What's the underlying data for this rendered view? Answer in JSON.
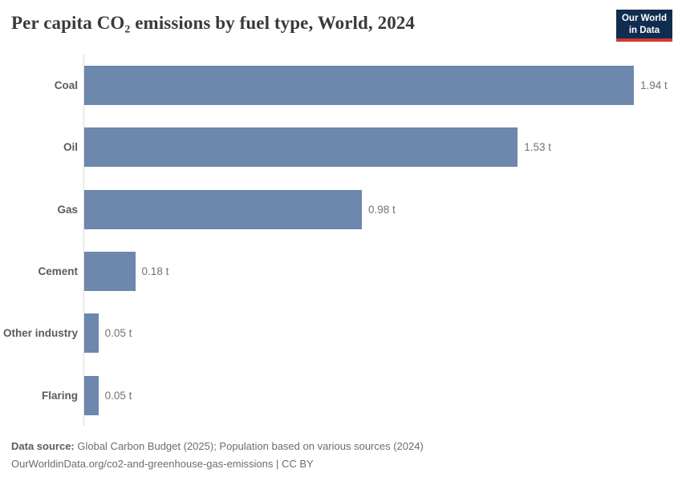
{
  "header": {
    "title": "Per capita CO₂ emissions by fuel type, World, 2024",
    "logo": {
      "line1": "Our World",
      "line2": "in Data"
    }
  },
  "chart_data": {
    "type": "bar",
    "orientation": "horizontal",
    "title": "Per capita CO₂ emissions by fuel type, World, 2024",
    "categories": [
      "Coal",
      "Oil",
      "Gas",
      "Cement",
      "Other industry",
      "Flaring"
    ],
    "values": [
      1.94,
      1.53,
      0.98,
      0.18,
      0.05,
      0.05
    ],
    "value_labels": [
      "1.94 t",
      "1.53 t",
      "0.98 t",
      "0.18 t",
      "0.05 t",
      "0.05 t"
    ],
    "unit": "t",
    "xlabel": "",
    "ylabel": "",
    "xlim": [
      0,
      1.94
    ],
    "grid": false,
    "legend": "none",
    "bar_color": "#6d87ad",
    "axis_line_color": "#dcdcdc"
  },
  "footer": {
    "data_source_label": "Data source:",
    "data_source_text": " Global Carbon Budget (2025); Population based on various sources (2024)",
    "attribution": "OurWorldinData.org/co2-and-greenhouse-gas-emissions | CC BY"
  }
}
